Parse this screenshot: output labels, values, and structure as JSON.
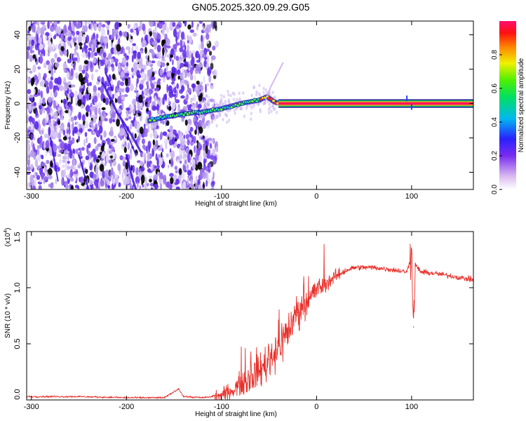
{
  "title": "GN05.2025.320.09.29.G05",
  "colors": {
    "spectrum_low": "#d9c6f5",
    "spectrum_mid": "#7a3cf0",
    "snr_line": "#e8302a",
    "frame": "#000000"
  },
  "chart_data": [
    {
      "type": "heatmap",
      "xlabel": "Height of straight line (km)",
      "ylabel": "Frequency (Hz)",
      "xlim": [
        -305,
        165
      ],
      "ylim": [
        -50,
        48
      ],
      "x_ticks": [
        -300,
        -200,
        -100,
        0,
        100
      ],
      "x_tick_labels": [
        "-300",
        "-200",
        "-100",
        "0",
        "100"
      ],
      "y_ticks": [
        -40,
        -20,
        0,
        20,
        40
      ],
      "y_tick_labels": [
        "-40",
        "-20",
        "0",
        "20",
        "40"
      ],
      "ridge": {
        "x": [
          -175,
          -160,
          -140,
          -120,
          -100,
          -80,
          -60,
          -52,
          -45,
          -35,
          -20,
          -10,
          0,
          50,
          100,
          165
        ],
        "y": [
          -10,
          -8,
          -6,
          -5,
          -3,
          0,
          2,
          4,
          1,
          0,
          0,
          0,
          0,
          0,
          0,
          0
        ]
      },
      "colorbar": {
        "label": "Normalized spectral amplitude",
        "range": [
          0.0,
          1.0
        ],
        "ticks": [
          0.0,
          0.2,
          0.4,
          0.6,
          0.8
        ],
        "tick_labels": [
          "0.0",
          "0.2",
          "0.4",
          "0.6",
          "0.8"
        ]
      }
    },
    {
      "type": "line",
      "xlabel": "Height of straight line (km)",
      "ylabel": "SNR (10 * v/v)",
      "exponent_label": "(x10",
      "exponent_power": "4",
      "exponent_close": ")",
      "xlim": [
        -305,
        165
      ],
      "ylim": [
        0,
        1.5
      ],
      "x_ticks": [
        -300,
        -200,
        -100,
        0,
        100
      ],
      "x_tick_labels": [
        "-300",
        "-200",
        "-100",
        "0",
        "100"
      ],
      "y_ticks": [
        0,
        0.5,
        1.0,
        1.5
      ],
      "y_tick_labels": [
        "0.0",
        "0.5",
        "1.0",
        "1.5"
      ],
      "series": [
        {
          "name": "SNR",
          "x": [
            -305,
            -250,
            -200,
            -160,
            -145,
            -140,
            -120,
            -100,
            -90,
            -80,
            -70,
            -60,
            -50,
            -40,
            -30,
            -20,
            -10,
            0,
            10,
            20,
            30,
            40,
            60,
            80,
            95,
            100,
            102,
            104,
            110,
            130,
            165
          ],
          "y": [
            0.03,
            0.03,
            0.02,
            0.02,
            0.1,
            0.03,
            0.02,
            0.04,
            0.08,
            0.14,
            0.2,
            0.26,
            0.36,
            0.48,
            0.62,
            0.78,
            0.9,
            0.98,
            1.04,
            1.1,
            1.15,
            1.18,
            1.18,
            1.16,
            1.14,
            1.3,
            0.65,
            1.2,
            1.14,
            1.12,
            1.07
          ]
        }
      ]
    }
  ]
}
